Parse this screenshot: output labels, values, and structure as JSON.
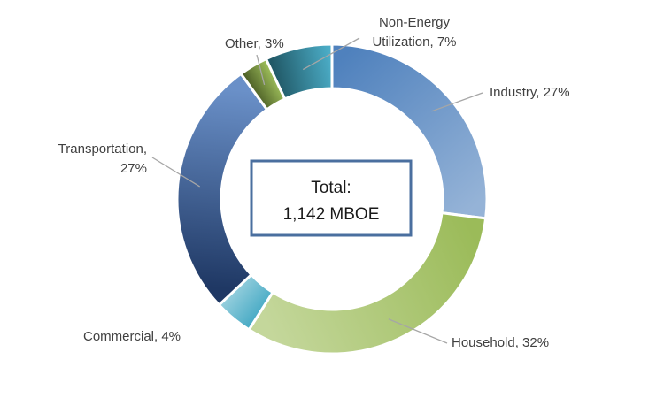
{
  "chart_data": {
    "type": "pie",
    "subtype": "donut",
    "direction": "clockwise",
    "start": "top",
    "center_label": [
      "Total:",
      "1,142 MBOE"
    ],
    "slices": [
      {
        "name": "Industry",
        "value": 27,
        "label": "Industry, 27%",
        "colors": [
          "#4f81bd",
          "#95b3d7"
        ]
      },
      {
        "name": "Household",
        "value": 32,
        "label": "Household, 32%",
        "colors": [
          "#9bbb59",
          "#c4d79b"
        ]
      },
      {
        "name": "Commercial",
        "value": 4,
        "label": "Commercial, 4%",
        "colors": [
          "#4bacc6",
          "#92cddc"
        ]
      },
      {
        "name": "Transportation",
        "value": 27,
        "label": [
          "Transportation,",
          "27%"
        ],
        "colors": [
          "#1f3864",
          "#6a90c8"
        ]
      },
      {
        "name": "Other",
        "value": 3,
        "label": "Other, 3%",
        "colors": [
          "#4f6228",
          "#9bbb59"
        ]
      },
      {
        "name": "Non-Energy Utilization",
        "value": 7,
        "label": [
          "Non-Energy",
          "Utilization, 7%"
        ],
        "colors": [
          "#215967",
          "#4bacc6"
        ]
      }
    ],
    "center_box_border": "#4a6f9f",
    "leader_line_color": "#a6a6a6",
    "slice_separator_color": "#ffffff"
  }
}
